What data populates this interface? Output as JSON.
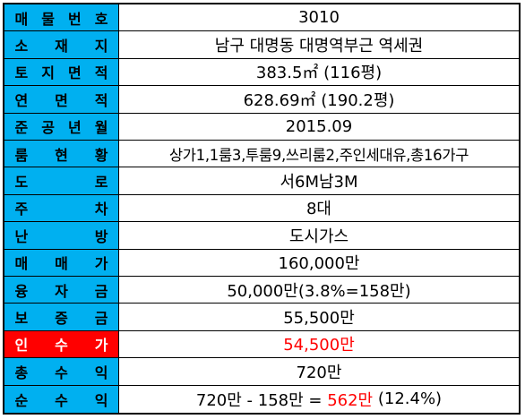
{
  "rows": [
    {
      "label": "매물번호",
      "value": "3010"
    },
    {
      "label": "소재지",
      "value": "남구 대명동 대명역부근 역세권"
    },
    {
      "label": "토지면적",
      "value": "383.5㎡ (116평)"
    },
    {
      "label": "연면적",
      "value": "628.69㎡ (190.2평)"
    },
    {
      "label": "준공년월",
      "value": "2015.09"
    },
    {
      "label": "룸현황",
      "value": "상가1,1룸3,투룸9,쓰리룸2,주인세대유,총16가구"
    },
    {
      "label": "도로",
      "value": "서6M남3M"
    },
    {
      "label": "주차",
      "value": "8대"
    },
    {
      "label": "난방",
      "value": "도시가스"
    },
    {
      "label": "매매가",
      "value": "160,000만"
    },
    {
      "label": "융자금",
      "value": "50,000만(3.8%=158만)"
    },
    {
      "label": "보증금",
      "value": "55,500만"
    },
    {
      "label": "인수가",
      "value": "54,500만"
    },
    {
      "label": "총수익",
      "value": "720만"
    },
    {
      "label": "순수익",
      "value_prefix": "720만 - 158만 = ",
      "value_highlight": "562만",
      "value_suffix": " (12.4%)"
    }
  ],
  "colors": {
    "label_bg": "#00b0f0",
    "highlight_bg": "#ff0000",
    "highlight_text": "#ff0000"
  }
}
